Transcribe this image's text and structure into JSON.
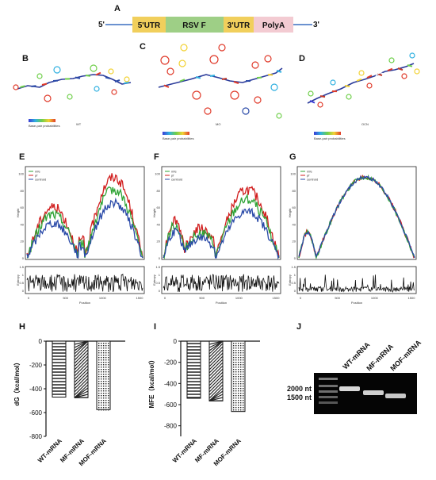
{
  "panels": {
    "A": "A",
    "B": "B",
    "C": "C",
    "D": "D",
    "E": "E",
    "F": "F",
    "G": "G",
    "H": "H",
    "I": "I",
    "J": "J"
  },
  "construct": {
    "five_prime": "5'",
    "three_prime": "3'",
    "segments": [
      {
        "label": "5'UTR",
        "color": "#f1cf5c"
      },
      {
        "label": "RSV F",
        "color": "#9ecf86"
      },
      {
        "label": "3'UTR",
        "color": "#f1cf5c"
      },
      {
        "label": "PolyA",
        "color": "#f3cbd2"
      }
    ]
  },
  "structures": {
    "legend_label": "Base-pair probabilities",
    "captions": [
      "WT",
      "MO",
      "OCN"
    ]
  },
  "profiles": {
    "legend": [
      "mfe",
      "pf",
      "centroid"
    ],
    "colors": {
      "mfe": "#2ea336",
      "pf": "#d11f1f",
      "centroid": "#2a4aa8"
    },
    "ylabel": "Height",
    "entropy_label": "Entropy",
    "xlabel": "Position",
    "xticks": [
      "0",
      "500",
      "1000",
      "1500"
    ],
    "yticks": [
      "0",
      "20",
      "40",
      "60",
      "80",
      "100"
    ],
    "entropy_ticks": [
      "0",
      "0.5",
      "1",
      "1.5"
    ]
  },
  "chart_data": [
    {
      "type": "bar",
      "title": "",
      "ylabel": "dG（kcal/mol）",
      "categories": [
        "WT-mRNA",
        "MF-mRNA",
        "MOF-mRNA"
      ],
      "values": [
        -470,
        -475,
        -575
      ],
      "ylim": [
        -800,
        0
      ],
      "yticks": [
        "0",
        "-200",
        "-400",
        "-600",
        "-800"
      ],
      "grid": false
    },
    {
      "type": "bar",
      "title": "",
      "ylabel": "MFE（kcal/mol）",
      "categories": [
        "WT-mRNA",
        "MF-mRNA",
        "MOF-mRNA"
      ],
      "values": [
        -540,
        -565,
        -665
      ],
      "ylim": [
        -900,
        0
      ],
      "yticks": [
        "0",
        "-200",
        "-400",
        "-600",
        "-800"
      ],
      "grid": false
    }
  ],
  "gel": {
    "lanes": [
      "WT-mRNA",
      "MF-mRNA",
      "MOF-mRNA"
    ],
    "markers": [
      "2000 nt",
      "1500 nt"
    ]
  }
}
